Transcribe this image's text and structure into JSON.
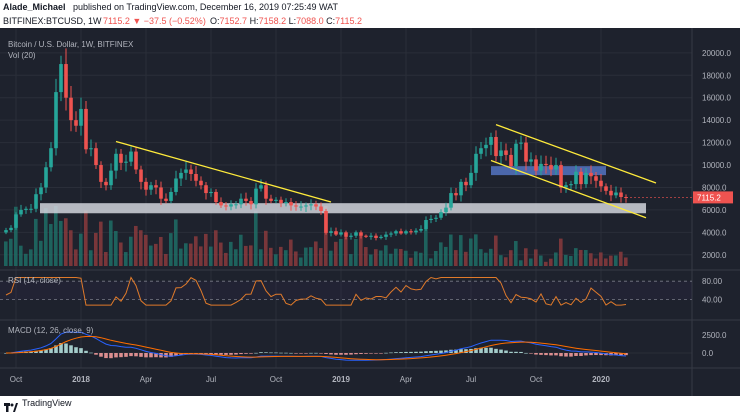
{
  "header": {
    "line1_user": "Alade_Michael",
    "line1_rest": "published on TradingView.com, December 16, 2019 07:25:49 WAT",
    "symbol": "BITFINEX:BTCUSD, 1W",
    "change": "7115.2 ▼ −37.5 (−0.52%)",
    "open_label": "O:",
    "open": "7152.7",
    "high_label": "H:",
    "high": "7158.2",
    "low_label": "L:",
    "low": "7088.0",
    "close_label": "C:",
    "close": "7115.2"
  },
  "chart_labels": {
    "instrument": "Bitcoin / U.S. Dollar, 1W, BITFINEX",
    "vol": "Vol (20)",
    "rsi": "RSI (14, close)",
    "macd": "MACD (12, 26, close, 9)",
    "last_price": "7115.2"
  },
  "footer": {
    "brand": "TradingView"
  },
  "colors": {
    "up": "#26a69a",
    "down": "#ef5350",
    "trendline": "#ffeb3b",
    "support": "#d1d4dc",
    "resistance": "#5b7fd6",
    "rsi": "#e07a2a",
    "macd": "#2962ff",
    "signal": "#ff6d00",
    "background": "#1e222d"
  },
  "chart_data": [
    {
      "type": "candlestick",
      "title": "Bitcoin / U.S. Dollar, 1W, BITFINEX",
      "y_ticks": [
        2000,
        4000,
        6000,
        8000,
        10000,
        12000,
        14000,
        16000,
        18000,
        20000
      ],
      "y_tick_labels": [
        "2000.0",
        "4000.0",
        "6000.0",
        "8000.0",
        "10000.0",
        "12000.0",
        "14000.0",
        "16000.0",
        "18000.0",
        "20000.0"
      ],
      "ylim": [
        1000,
        21500
      ],
      "x_ticks": [
        {
          "label": "Oct",
          "week": 2
        },
        {
          "label": "2018",
          "week": 15
        },
        {
          "label": "Apr",
          "week": 28
        },
        {
          "label": "Jul",
          "week": 41
        },
        {
          "label": "Oct",
          "week": 54
        },
        {
          "label": "2019",
          "week": 67
        },
        {
          "label": "Apr",
          "week": 80
        },
        {
          "label": "Jul",
          "week": 93
        },
        {
          "label": "Oct",
          "week": 106
        },
        {
          "label": "2020",
          "week": 119
        }
      ],
      "closes": [
        4200,
        4400,
        5600,
        6000,
        6100,
        6100,
        7400,
        8000,
        9800,
        11500,
        16500,
        19000,
        16000,
        14000,
        13500,
        15000,
        11400,
        11500,
        10000,
        8500,
        8200,
        9500,
        11000,
        10200,
        10300,
        11200,
        9600,
        8500,
        7800,
        8200,
        8000,
        7000,
        6800,
        7600,
        8800,
        9300,
        9600,
        9200,
        8600,
        8200,
        7500,
        7600,
        6700,
        6400,
        6300,
        6500,
        6500,
        7000,
        6800,
        6500,
        7900,
        8200,
        7000,
        6800,
        6900,
        6600,
        6700,
        6400,
        6300,
        6300,
        6400,
        6500,
        6300,
        5900,
        3950,
        4100,
        3800,
        4000,
        3600,
        3700,
        4000,
        3700,
        3600,
        3700,
        3500,
        3600,
        3800,
        3900,
        4100,
        3900,
        4100,
        4000,
        4150,
        4300,
        5100,
        5200,
        5300,
        5800,
        6200,
        7500,
        7300,
        8500,
        8200,
        9300,
        11000,
        11500,
        11800,
        12500,
        10800,
        11300,
        10900,
        9900,
        11900,
        12000,
        10300,
        10500,
        9500,
        10100,
        10000,
        9600,
        10000,
        8000,
        8200,
        8300,
        9400,
        8300,
        9300,
        9000,
        8600,
        8100,
        7700,
        7300,
        7550,
        7150,
        7115
      ],
      "rsi": {
        "levels": [
          80,
          40
        ],
        "labels": [
          "80.00",
          "40.00"
        ]
      },
      "macd": {
        "ticks": [
          2500,
          0
        ],
        "labels": [
          "2500.0",
          "0.0"
        ]
      },
      "annotations": [
        "Descending trendline from the 2018 highs (yellow)",
        "Horizontal support band near 6000 (grey)",
        "Descending channel from the 2019 high (yellow)",
        "Resistance band near 9500 (blue)"
      ]
    }
  ]
}
